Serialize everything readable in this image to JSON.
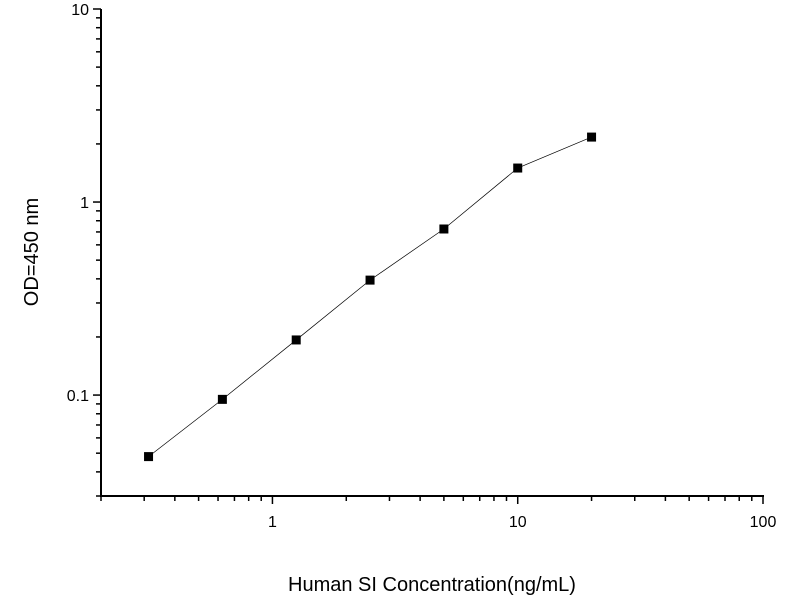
{
  "chart_data": {
    "type": "line",
    "title": "",
    "xlabel": "Human SI Concentration(ng/mL)",
    "ylabel": "OD=450 nm",
    "xscale": "log",
    "yscale": "log",
    "xlim": [
      0.2,
      100
    ],
    "ylim": [
      0.03,
      10
    ],
    "xticks": [
      {
        "v": 1,
        "label": "1"
      },
      {
        "v": 10,
        "label": "10"
      },
      {
        "v": 100,
        "label": "100"
      }
    ],
    "yticks": [
      {
        "v": 0.1,
        "label": "0.1"
      },
      {
        "v": 1,
        "label": "1"
      },
      {
        "v": 10,
        "label": "10"
      }
    ],
    "grid": false,
    "marker": "square",
    "series": [
      {
        "x": [
          0.3125,
          0.625,
          1.25,
          2.5,
          5,
          10,
          20
        ],
        "y": [
          0.048,
          0.095,
          0.193,
          0.394,
          0.725,
          1.5,
          2.17
        ]
      }
    ],
    "colors": {
      "line": "#000000",
      "marker": "#000000"
    }
  }
}
